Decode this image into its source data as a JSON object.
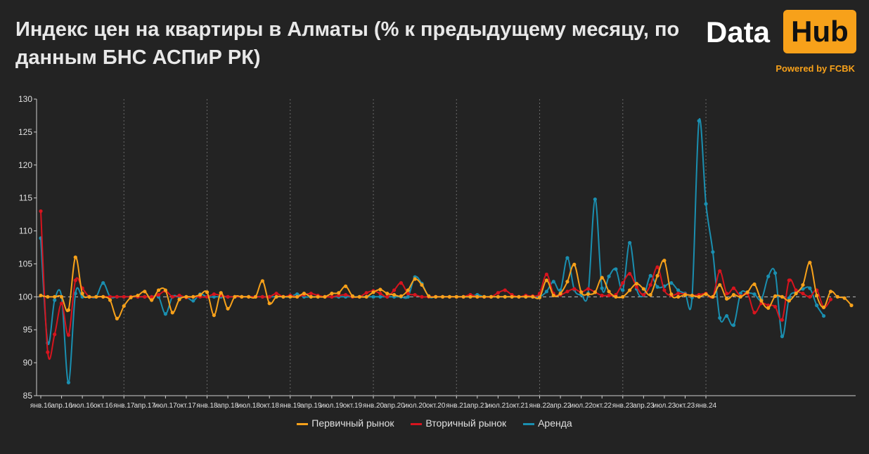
{
  "title": "Индекс цен на квартиры в Алматы (% к предыдущему месяцу, по данным БНС АСПиР РК)",
  "brand": {
    "data": "Data",
    "hub": "Hub",
    "powered": "Powered by FCBK"
  },
  "colors": {
    "primary": "#f7a11a",
    "secondary": "#d7141e",
    "rent": "#1a8fb0"
  },
  "chart_data": {
    "type": "line",
    "ylim": [
      85,
      130
    ],
    "yticks": [
      85,
      90,
      95,
      100,
      105,
      110,
      115,
      120,
      125,
      130
    ],
    "x_tick_labels": [
      "янв.16",
      "апр.16",
      "июл.16",
      "окт.16",
      "янв.17",
      "апр.17",
      "июл.17",
      "окт.17",
      "янв.18",
      "апр.18",
      "июл.18",
      "окт.18",
      "янв.19",
      "апр.19",
      "июл.19",
      "окт.19",
      "янв.20",
      "апр.20",
      "июл.20",
      "окт.20",
      "янв.21",
      "апр.21",
      "июл.21",
      "окт.21",
      "янв.22",
      "апр.22",
      "июл.22",
      "окт.22",
      "янв.23",
      "апр.23",
      "июл.23",
      "окт.23",
      "янв.24"
    ],
    "series": [
      {
        "name": "Первичный рынок",
        "color": "#f7a11a",
        "values": [
          100.2,
          100,
          100,
          100,
          98,
          106,
          100.5,
          100,
          100,
          100,
          99.5,
          96.7,
          98.6,
          99.9,
          100.2,
          100.8,
          99.5,
          101,
          101,
          97.6,
          99.6,
          100,
          100,
          100.3,
          100.7,
          97.2,
          100.6,
          98.2,
          100,
          100,
          100,
          100,
          102.4,
          99,
          100,
          100,
          100,
          100,
          100.5,
          100,
          100,
          100,
          100.5,
          100.6,
          101.6,
          100.1,
          100,
          100,
          100.7,
          101.1,
          100.5,
          100.3,
          100.1,
          101,
          102.7,
          101.8,
          100.1,
          100,
          100,
          100,
          100,
          100,
          100,
          100,
          100,
          100,
          100,
          100,
          100,
          100,
          100,
          100,
          99.9,
          102.5,
          100.2,
          100.5,
          102.3,
          104.9,
          100.7,
          100.4,
          100.7,
          102.9,
          100.8,
          100,
          100,
          101,
          102,
          101.2,
          100.3,
          103.2,
          105.5,
          100.4,
          100,
          100.3,
          100.2,
          100,
          100.4,
          100,
          101.8,
          99.7,
          100.3,
          100,
          100.7,
          101.9,
          99.4,
          98.3,
          100.1,
          100,
          99.4,
          100.5,
          101.8,
          105.2,
          100.2,
          98.4,
          100.8,
          100,
          99.8,
          98.7
        ]
      },
      {
        "name": "Вторичный рынок",
        "color": "#d7141e",
        "values": [
          113,
          91.6,
          94.3,
          99,
          94.2,
          102.5,
          101.3,
          100,
          100,
          100,
          100,
          100,
          100,
          100,
          100,
          100,
          100,
          100.3,
          100.9,
          100,
          100.2,
          99.9,
          100,
          100,
          100,
          100.4,
          100.2,
          100,
          100,
          100,
          100,
          100,
          100,
          100,
          100.5,
          100,
          100.2,
          100,
          100.3,
          100.5,
          100.2,
          100,
          100,
          100.2,
          100.3,
          100,
          100,
          100.6,
          100.9,
          100.5,
          100,
          101,
          102.1,
          100.5,
          100.3,
          100,
          100,
          100,
          100,
          100,
          100,
          100,
          100.3,
          100,
          100,
          100,
          100.6,
          101,
          100.3,
          100,
          100.2,
          100.1,
          100.5,
          103.4,
          100.5,
          100.3,
          100.8,
          101.2,
          100.7,
          101.2,
          100.7,
          100.2,
          100.2,
          100.3,
          102.1,
          103.5,
          101.5,
          100.3,
          101.8,
          104.5,
          101,
          100.2,
          100.5,
          100.4,
          100.2,
          100.3,
          100.5,
          100,
          103.9,
          100.5,
          101.3,
          100.1,
          100.5,
          97.6,
          99,
          98.7,
          98.5,
          96.5,
          102.5,
          101,
          100.5,
          100,
          101,
          98.4,
          99.6
        ]
      },
      {
        "name": "Аренда",
        "color": "#1a8fb0",
        "values": [
          108.9,
          93,
          99.5,
          100,
          87,
          100.5,
          100,
          100,
          100,
          102.1,
          100,
          100,
          100,
          100,
          100,
          100,
          100,
          100,
          97.4,
          100,
          100,
          100,
          99.4,
          100.4,
          100,
          100,
          100,
          100,
          100,
          100,
          100,
          100,
          100,
          100,
          100,
          100,
          100,
          100.4,
          100,
          100,
          100,
          100,
          100,
          100,
          100,
          100,
          100,
          100,
          100,
          100,
          100,
          100,
          100,
          100,
          103,
          102,
          100,
          100,
          100,
          100,
          100,
          100,
          100,
          100.3,
          100,
          100,
          100,
          100,
          100,
          100,
          100,
          100,
          100,
          100.8,
          102.3,
          101,
          105.9,
          101.1,
          100.3,
          100.5,
          114.8,
          101.3,
          103.1,
          104.2,
          101,
          108.2,
          101.2,
          100.2,
          103.2,
          101.5,
          101.6,
          102.1,
          101,
          100.5,
          99.9,
          126.7,
          114.1,
          106.8,
          96.8,
          97.1,
          95.7,
          100.5,
          100.6,
          100.4,
          99.6,
          103.1,
          103.6,
          94,
          99.8,
          100.7,
          101.2,
          101.3,
          98.7,
          97.1
        ]
      }
    ]
  }
}
